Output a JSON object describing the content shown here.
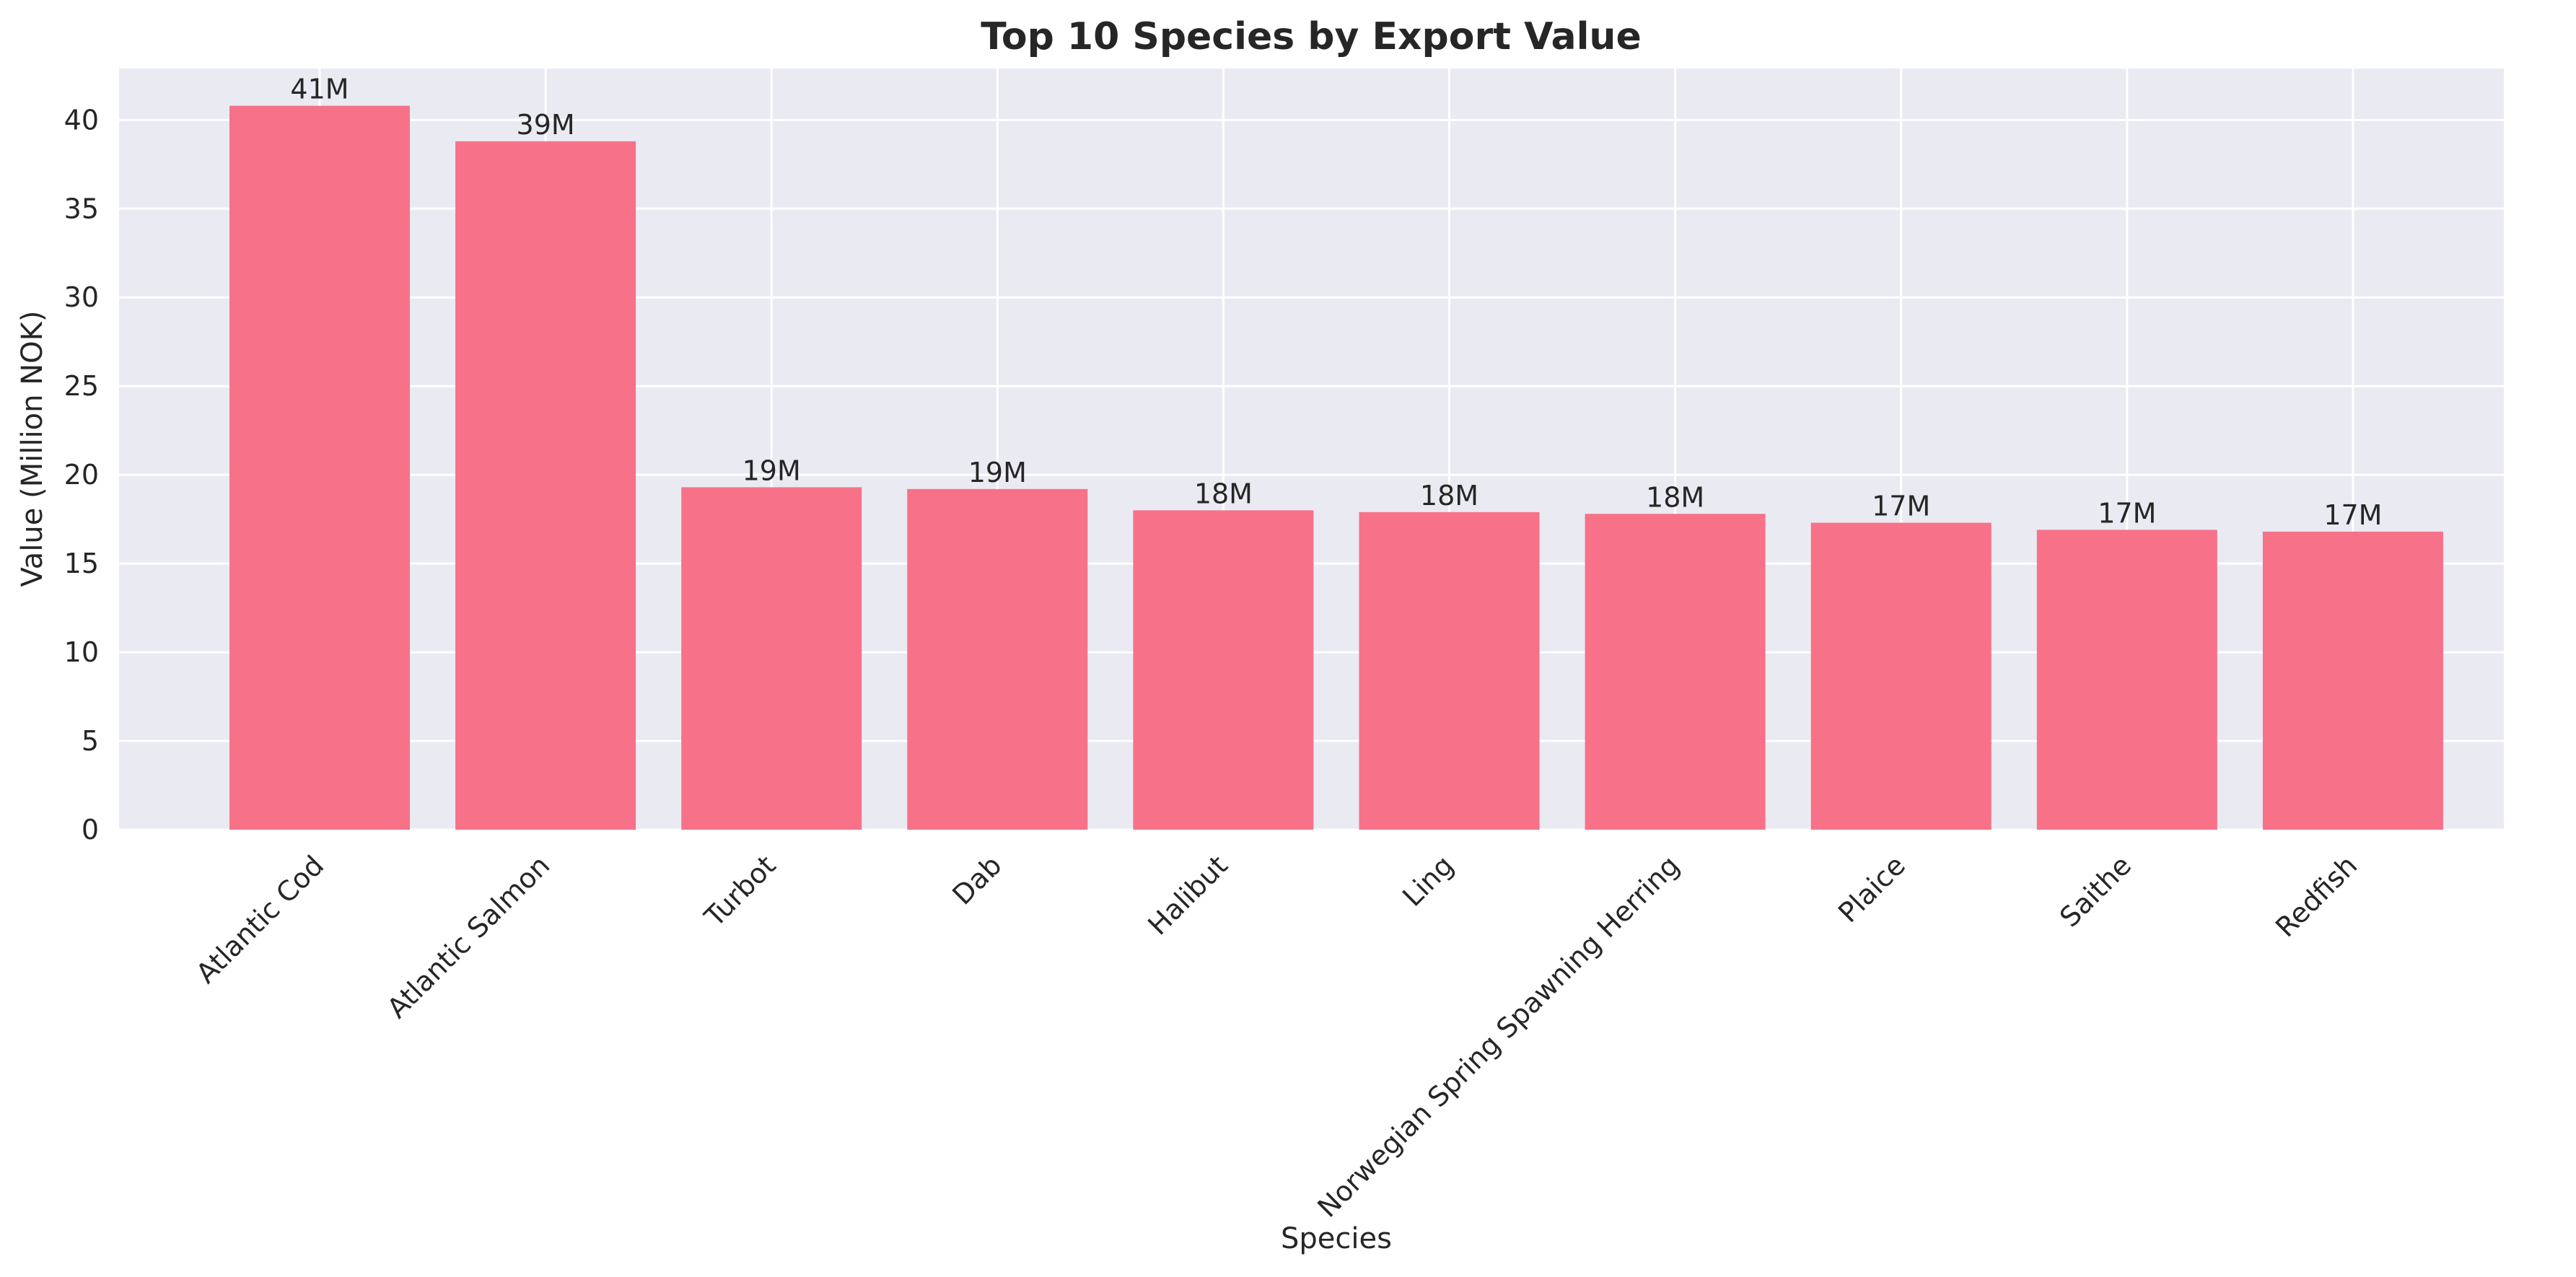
{
  "chart_data": {
    "type": "bar",
    "title": "Top 10 Species by Export Value",
    "xlabel": "Species",
    "ylabel": "Value (Million NOK)",
    "categories": [
      "Atlantic Cod",
      "Atlantic Salmon",
      "Turbot",
      "Dab",
      "Halibut",
      "Ling",
      "Norwegian Spring Spawning Herring",
      "Plaice",
      "Saithe",
      "Redfish"
    ],
    "values": [
      40.8,
      38.8,
      19.3,
      19.2,
      18.0,
      17.9,
      17.8,
      17.3,
      16.9,
      16.8
    ],
    "data_labels": [
      "41M",
      "39M",
      "19M",
      "19M",
      "18M",
      "18M",
      "18M",
      "17M",
      "17M",
      "17M"
    ],
    "y_ticks": [
      0,
      5,
      10,
      15,
      20,
      25,
      30,
      35,
      40
    ],
    "ylim": [
      0,
      42.9
    ],
    "grid": true,
    "colors": {
      "bar": "#f77189",
      "plot_background": "#eaeaf2",
      "grid": "#ffffff",
      "text": "#262626"
    }
  }
}
